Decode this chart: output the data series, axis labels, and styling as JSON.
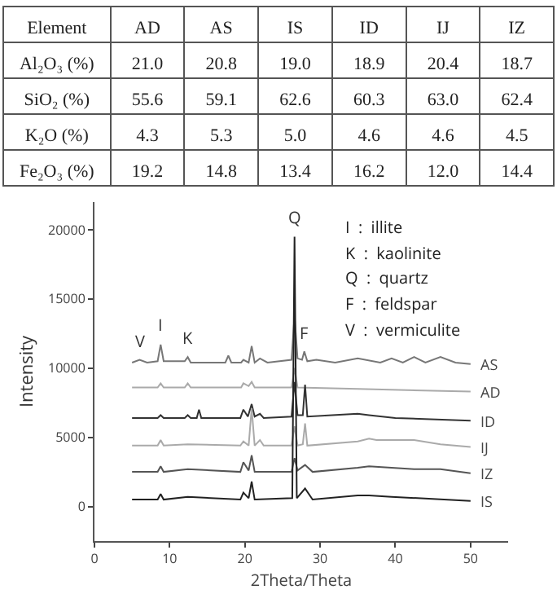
{
  "chart_data": [
    {
      "type": "other",
      "ylabel": "Element",
      "categories": [
        "AD",
        "AS",
        "IS",
        "ID",
        "IJ",
        "IZ"
      ],
      "y_categories": [
        "Al₂O₃ (%)",
        "SiO₂ (%)",
        "K₂O (%)",
        "Fe₂O₃ (%)"
      ],
      "cell_labels": [
        [
          "21.0",
          "20.8",
          "19.0",
          "18.9",
          "20.4",
          "18.7"
        ],
        [
          "55.6",
          "59.1",
          "62.6",
          "60.3",
          "63.0",
          "62.4"
        ],
        [
          "4.3",
          "5.3",
          "5.0",
          "4.6",
          "4.6",
          "4.5"
        ],
        [
          "19.2",
          "14.8",
          "13.4",
          "16.2",
          "12.0",
          "14.4"
        ]
      ]
    },
    {
      "type": "line",
      "xlabel": "2Theta/Theta",
      "ylabel": "Intensity",
      "xlim": [
        0,
        55
      ],
      "ylim": [
        -2500,
        22000
      ],
      "xticks": [
        0,
        10,
        20,
        30,
        40,
        50
      ],
      "yticks": [
        0,
        5000,
        10000,
        15000,
        20000
      ],
      "grid": false,
      "legend": false,
      "marker": "none",
      "line_style": "solid",
      "series": [
        {
          "name": "AS",
          "color": "#777777",
          "x": [
            5,
            6,
            7,
            8.4,
            8.8,
            9.2,
            12,
            12.4,
            12.8,
            17.4,
            17.8,
            18.2,
            19.5,
            19.8,
            20.5,
            20.9,
            21.3,
            22,
            23,
            26.2,
            26.6,
            27,
            27.6,
            27.9,
            28.3,
            29.5,
            32,
            35,
            38,
            39.5,
            41,
            42.5,
            44,
            46,
            48,
            50
          ],
          "values": [
            10400,
            10600,
            10400,
            10500,
            11700,
            10500,
            10500,
            10800,
            10400,
            10400,
            10900,
            10400,
            10400,
            10600,
            10400,
            11600,
            10400,
            10700,
            10400,
            10600,
            13800,
            10700,
            10600,
            11200,
            10500,
            10600,
            10400,
            10700,
            10400,
            10700,
            10400,
            10800,
            10400,
            10800,
            10400,
            10300
          ]
        },
        {
          "name": "AD",
          "color": "#aaaaaa",
          "x": [
            5,
            8.4,
            8.8,
            9.2,
            12,
            12.4,
            12.8,
            19.5,
            19.8,
            20.5,
            20.9,
            21.3,
            26.2,
            26.6,
            27,
            35,
            50
          ],
          "values": [
            8600,
            8600,
            8900,
            8600,
            8600,
            8900,
            8600,
            8600,
            8900,
            8700,
            9000,
            8600,
            8600,
            10000,
            8600,
            8500,
            8300
          ]
        },
        {
          "name": "ID",
          "color": "#333333",
          "x": [
            5,
            8.4,
            8.8,
            9.2,
            12,
            12.4,
            12.8,
            13.6,
            13.9,
            14.2,
            19.4,
            19.8,
            20.4,
            20.9,
            21.3,
            22,
            22.5,
            26.2,
            26.6,
            27,
            27.7,
            28,
            28.3,
            35,
            36.5,
            40,
            50
          ],
          "values": [
            6400,
            6400,
            6600,
            6400,
            6400,
            6600,
            6400,
            6400,
            7000,
            6400,
            6400,
            7000,
            6500,
            7400,
            6500,
            6700,
            6400,
            6500,
            9000,
            6600,
            6600,
            8800,
            6500,
            6700,
            6600,
            6400,
            6200
          ]
        },
        {
          "name": "IJ",
          "color": "#aaaaaa",
          "x": [
            5,
            8.4,
            8.8,
            9.2,
            12.4,
            19.4,
            19.8,
            20.5,
            20.9,
            21.3,
            22,
            22.5,
            26.2,
            26.6,
            27,
            27.7,
            28,
            28.3,
            35,
            36.5,
            37.5,
            39.5,
            42.5,
            46,
            50
          ],
          "values": [
            4400,
            4400,
            4800,
            4400,
            4500,
            4400,
            4700,
            4400,
            7100,
            4400,
            4800,
            4400,
            4400,
            5800,
            4400,
            4500,
            6000,
            4400,
            4700,
            4900,
            4800,
            4800,
            4800,
            4500,
            4300
          ]
        },
        {
          "name": "IZ",
          "color": "#555555",
          "x": [
            5,
            8.4,
            8.8,
            9.2,
            12.4,
            19.4,
            19.8,
            20.5,
            20.9,
            21.3,
            26.2,
            26.6,
            27,
            28,
            29,
            35,
            36.5,
            39.5,
            42.5,
            46,
            50
          ],
          "values": [
            2500,
            2500,
            2900,
            2500,
            2700,
            2500,
            3200,
            2600,
            3700,
            2500,
            2500,
            3500,
            2600,
            3000,
            2500,
            2800,
            2900,
            2800,
            2700,
            2700,
            2400
          ]
        },
        {
          "name": "IS",
          "color": "#222222",
          "x": [
            5,
            8.4,
            8.8,
            9.2,
            12.4,
            19.4,
            19.8,
            20.5,
            20.9,
            21.3,
            26.3,
            26.6,
            26.9,
            28,
            29,
            35,
            36.5,
            39.5,
            50
          ],
          "values": [
            500,
            500,
            900,
            500,
            700,
            500,
            1000,
            600,
            1800,
            500,
            600,
            19500,
            600,
            1300,
            500,
            800,
            800,
            700,
            400
          ]
        }
      ],
      "annotations": [
        {
          "text": "V",
          "x": 6,
          "y": 10600
        },
        {
          "text": "I",
          "x": 8.8,
          "y": 11700
        },
        {
          "text": "K",
          "x": 12.4,
          "y": 10800
        },
        {
          "text": "Q",
          "x": 26.6,
          "y": 19500
        },
        {
          "text": "F",
          "x": 27.9,
          "y": 11200
        },
        "I  :  illite",
        "K  :  kaolinite",
        "Q  :  quartz",
        "F  :  feldspar",
        "V  :  vermiculite"
      ]
    }
  ]
}
